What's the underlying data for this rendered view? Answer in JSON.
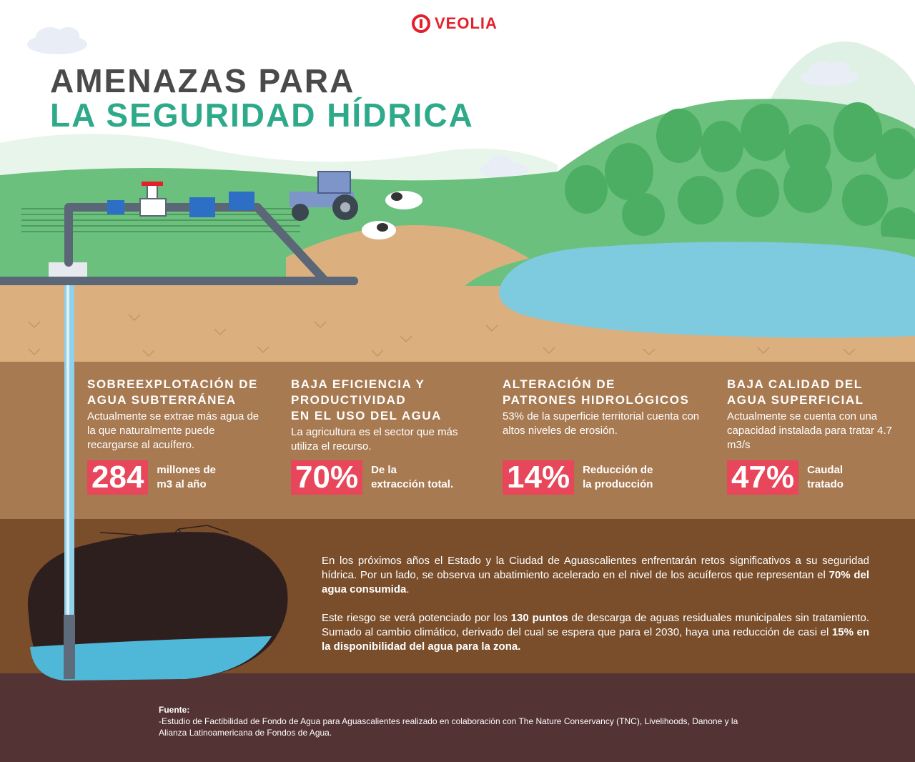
{
  "brand": {
    "name": "VEOLIA",
    "color": "#e3202b"
  },
  "title": {
    "line1": "AMENAZAS PARA",
    "line2": "LA SEGURIDAD HÍDRICA"
  },
  "sections": [
    {
      "title": "SOBREEXPLOTACIÓN DE\nAGUA SUBTERRÁNEA",
      "desc": "Actualmente se extrae más agua de la que naturalmente puede recargarse al acuífero.",
      "stat": "284",
      "stat_label": "millones de\nm3 al año"
    },
    {
      "title": "BAJA EFICIENCIA Y\nPRODUCTIVIDAD\nEN EL USO DEL AGUA",
      "desc": "La agricultura es el sector que más utiliza el recurso.",
      "stat": "70%",
      "stat_label": "De la\nextracción total."
    },
    {
      "title": "ALTERACIÓN DE\nPATRONES HIDROLÓGICOS",
      "desc": "53% de la superficie territorial cuenta con altos niveles de erosión.",
      "stat": "14%",
      "stat_label": "Reducción de\nla producción"
    },
    {
      "title": "BAJA CALIDAD DEL\nAGUA SUPERFICIAL",
      "desc": "Actualmente se cuenta con una capacidad instalada para tratar 4.7 m3/s",
      "stat": "47%",
      "stat_label": "Caudal\ntratado"
    }
  ],
  "paragraph1": {
    "a": "En los próximos años el Estado y la Ciudad de Aguascalientes enfrentarán retos significativos a su seguridad hídrica. Por un lado, se observa un abatimiento acelerado en el nivel de los acuíferos que representan el ",
    "b": "70% del agua consumida",
    "c": "."
  },
  "paragraph2": {
    "a": "Este riesgo se verá potenciado por los ",
    "b": "130 puntos",
    "c": " de descarga de aguas residuales municipales sin tratamiento. Sumado al cambio climático, derivado del cual se espera que para el 2030, haya una reducción de casi el ",
    "d": "15% en la disponibilidad del agua para la zona."
  },
  "source": {
    "title": "Fuente:",
    "text": "-Estudio de Factibilidad de Fondo de Agua para Aguascalientes realizado en colaboración con The Nature Conservancy (TNC), Livelihoods, Danone y la Alianza Latinoamericana de Fondos de Agua."
  },
  "colors": {
    "sky": "#ffffff",
    "hill_light": "#dff1e4",
    "grass": "#6cc07d",
    "tree": "#4cae63",
    "sand": "#dcb07e",
    "soil1": "#a87a52",
    "soil2": "#7a4e2b",
    "soil3": "#533333",
    "lake": "#7ecbe0",
    "stat_bg": "#e8465a",
    "title_teal": "#2eaa8a"
  }
}
